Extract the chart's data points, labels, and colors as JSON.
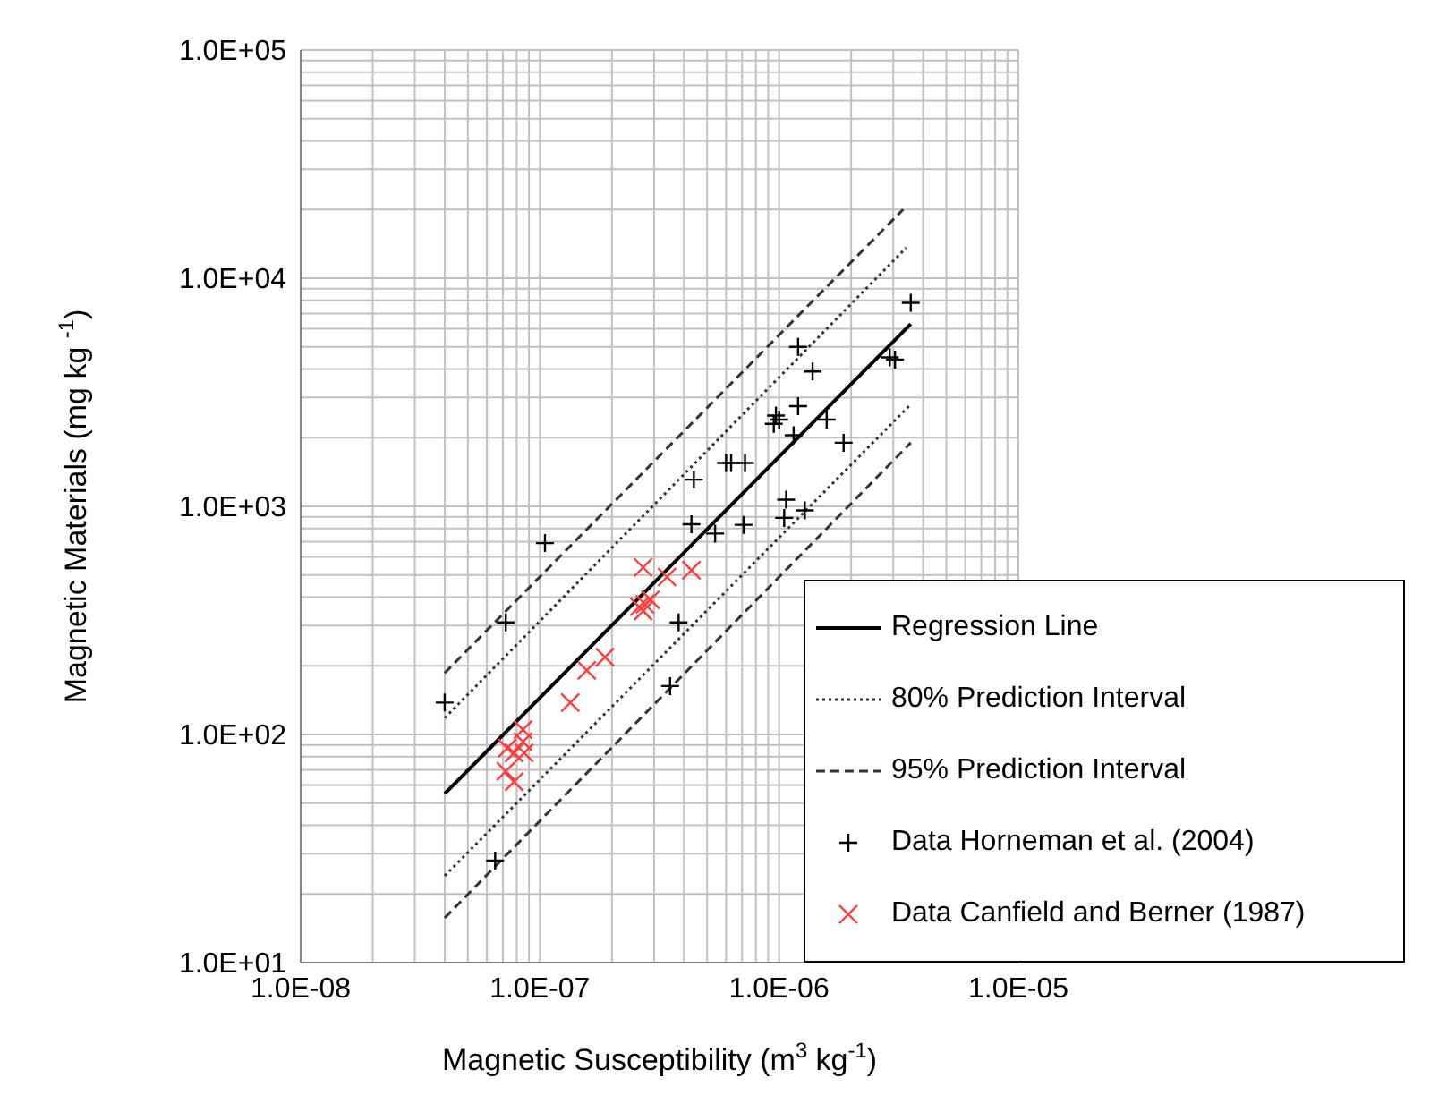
{
  "chart_data": {
    "type": "scatter",
    "xlabel": "Magnetic Susceptibility (m$^{3}$ kg$^{-1}$)",
    "ylabel": "Magnetic Materials (mg kg $^{-1}$)",
    "log": "xy",
    "grid": true,
    "legend": "bottom right",
    "xlim": [
      1e-08,
      1e-05
    ],
    "ylim": [
      10,
      100000
    ],
    "xticks": [
      {
        "value": 1e-08,
        "label": "1.0E-08"
      },
      {
        "value": 2e-08,
        "label": null
      },
      {
        "value": 3e-08,
        "label": null
      },
      {
        "value": 4e-08,
        "label": null
      },
      {
        "value": 5e-08,
        "label": null
      },
      {
        "value": 6e-08,
        "label": null
      },
      {
        "value": 7e-08,
        "label": null
      },
      {
        "value": 8e-08,
        "label": null
      },
      {
        "value": 9e-08,
        "label": null
      },
      {
        "value": 1e-07,
        "label": "1.0E-07"
      },
      {
        "value": 2e-07,
        "label": null
      },
      {
        "value": 3e-07,
        "label": null
      },
      {
        "value": 4e-07,
        "label": null
      },
      {
        "value": 5e-07,
        "label": null
      },
      {
        "value": 6e-07,
        "label": null
      },
      {
        "value": 7e-07,
        "label": null
      },
      {
        "value": 8e-07,
        "label": null
      },
      {
        "value": 9e-07,
        "label": null
      },
      {
        "value": 1e-06,
        "label": "1.0E-06"
      },
      {
        "value": 2e-06,
        "label": null
      },
      {
        "value": 3e-06,
        "label": null
      },
      {
        "value": 4e-06,
        "label": null
      },
      {
        "value": 5e-06,
        "label": null
      },
      {
        "value": 6e-06,
        "label": null
      },
      {
        "value": 7e-06,
        "label": null
      },
      {
        "value": 8e-06,
        "label": null
      },
      {
        "value": 9e-06,
        "label": null
      },
      {
        "value": 1e-05,
        "label": "1.0E-05"
      }
    ],
    "yticks": [
      {
        "value": 10,
        "label": "1.0E+01"
      },
      {
        "value": 20,
        "label": null
      },
      {
        "value": 30,
        "label": null
      },
      {
        "value": 40,
        "label": null
      },
      {
        "value": 50,
        "label": null
      },
      {
        "value": 60,
        "label": null
      },
      {
        "value": 70,
        "label": null
      },
      {
        "value": 80,
        "label": null
      },
      {
        "value": 90,
        "label": null
      },
      {
        "value": 100,
        "label": "1.0E+02"
      },
      {
        "value": 200,
        "label": null
      },
      {
        "value": 300,
        "label": null
      },
      {
        "value": 400,
        "label": null
      },
      {
        "value": 500,
        "label": null
      },
      {
        "value": 600,
        "label": null
      },
      {
        "value": 700,
        "label": null
      },
      {
        "value": 800,
        "label": null
      },
      {
        "value": 900,
        "label": null
      },
      {
        "value": 1000,
        "label": "1.0E+03"
      },
      {
        "value": 2000,
        "label": null
      },
      {
        "value": 3000,
        "label": null
      },
      {
        "value": 4000,
        "label": null
      },
      {
        "value": 5000,
        "label": null
      },
      {
        "value": 6000,
        "label": null
      },
      {
        "value": 7000,
        "label": null
      },
      {
        "value": 8000,
        "label": null
      },
      {
        "value": 9000,
        "label": null
      },
      {
        "value": 10000,
        "label": "1.0E+04"
      },
      {
        "value": 20000,
        "label": null
      },
      {
        "value": 30000,
        "label": null
      },
      {
        "value": 40000,
        "label": null
      },
      {
        "value": 50000,
        "label": null
      },
      {
        "value": 60000,
        "label": null
      },
      {
        "value": 70000,
        "label": null
      },
      {
        "value": 80000,
        "label": null
      },
      {
        "value": 90000,
        "label": null
      },
      {
        "value": 100000,
        "label": "1.0E+05"
      }
    ],
    "series": [
      {
        "name": "Regression Line",
        "type": "line",
        "line_style": "solid",
        "color": "#000000",
        "x": [
          4e-08,
          3.55e-06
        ],
        "values": [
          55,
          6300
        ]
      },
      {
        "name": "80% Prediction Interval",
        "type": "line",
        "line_style": "dotted",
        "color": "#333333",
        "x": [
          4e-08,
          3.4e-06
        ],
        "values": [
          118,
          13600
        ]
      },
      {
        "type": "line",
        "line_style": "dotted",
        "color": "#333333",
        "x": [
          4e-08,
          3.55e-06
        ],
        "values": [
          24,
          2800
        ]
      },
      {
        "name": "95% Prediction Interval",
        "type": "line",
        "line_style": "dashed",
        "color": "#333333",
        "x": [
          4e-08,
          3.3e-06
        ],
        "values": [
          186,
          20000
        ]
      },
      {
        "type": "line",
        "line_style": "dashed",
        "color": "#333333",
        "x": [
          4e-08,
          3.55e-06
        ],
        "values": [
          15.7,
          1900
        ]
      },
      {
        "name": "Data Horneman et al. (2004)",
        "type": "scatter",
        "marker": "plus",
        "color": "#000000",
        "x": [
          4e-08,
          7.2e-08,
          1.05e-07,
          6.5e-08,
          3.5e-07,
          3.8e-07,
          4.3e-07,
          5.4e-07,
          4.4e-07,
          6e-07,
          3.55e-06,
          2.9e-06,
          3.05e-06,
          1.2e-06,
          1.38e-06,
          1.2e-06,
          9.7e-07,
          9.5e-07,
          1e-06,
          1.58e-06,
          1.15e-06,
          1.86e-06,
          6.3e-07,
          7.2e-07,
          1.07e-06,
          1.05e-06,
          1.28e-06,
          7.1e-07
        ],
        "values": [
          138,
          310,
          690,
          28,
          163,
          310,
          835,
          760,
          1310,
          1550,
          7800,
          4500,
          4400,
          5000,
          3900,
          2750,
          2500,
          2300,
          2400,
          2400,
          2050,
          1900,
          1550,
          1550,
          1070,
          890,
          960,
          830
        ]
      },
      {
        "name": "Data Canfield and Berner (1987)",
        "type": "scatter",
        "marker": "cross",
        "color": "#ff3b3b",
        "x": [
          2.7e-07,
          3.4e-07,
          4.3e-07,
          2.6e-07,
          2.75e-07,
          2.9e-07,
          2.7e-07,
          1.87e-07,
          1.57e-07,
          1.34e-07,
          8.5e-08,
          8.5e-08,
          7.8e-08,
          8.6e-08,
          7.2e-08,
          7.8e-08,
          7.3e-08
        ],
        "values": [
          540,
          490,
          525,
          363,
          372,
          390,
          347,
          218,
          191,
          138,
          105,
          93,
          83,
          83,
          69,
          62,
          87
        ]
      }
    ]
  }
}
